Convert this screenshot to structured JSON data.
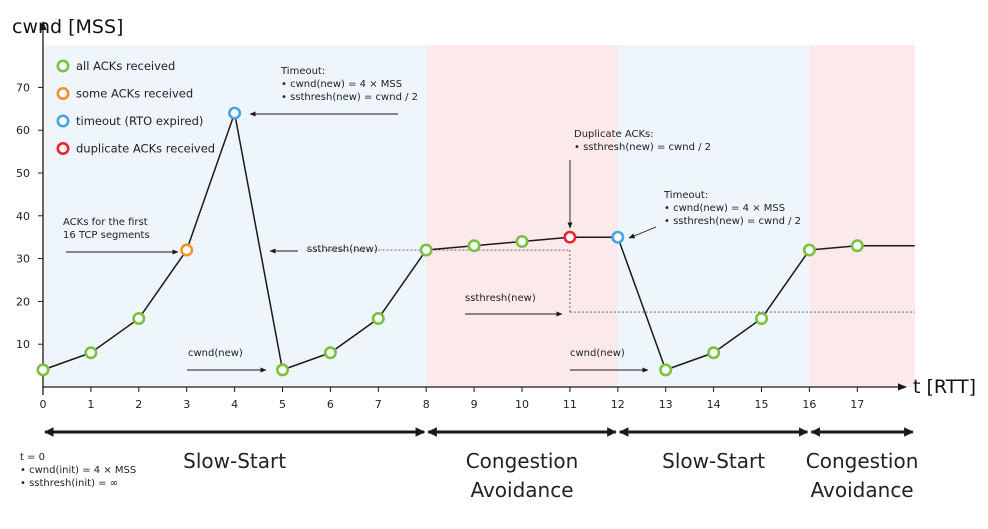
{
  "colors": {
    "green": "#7ac143",
    "orange": "#f0932b",
    "blue": "#4aa3df",
    "red": "#e8262f",
    "slow_start_band": "#eef5fb",
    "congestion_band": "#fbe9ec",
    "line": "#1a1a1a"
  },
  "chart_data": {
    "type": "line",
    "ylabel": "cwnd [MSS]",
    "xlabel": "t [RTT]",
    "xlim": [
      0,
      18.2
    ],
    "ylim": [
      0,
      80
    ],
    "x_ticks": [
      0,
      1,
      2,
      3,
      4,
      5,
      6,
      7,
      8,
      9,
      10,
      11,
      12,
      13,
      14,
      15,
      16,
      17
    ],
    "y_ticks": [
      10,
      20,
      30,
      40,
      50,
      60,
      70
    ],
    "grid": false,
    "legend_position": "top-left",
    "legend": [
      {
        "label": "all ACKs received",
        "color": "green"
      },
      {
        "label": "some ACKs received",
        "color": "orange"
      },
      {
        "label": "timeout (RTO expired)",
        "color": "blue"
      },
      {
        "label": "duplicate ACKs received",
        "color": "red"
      }
    ],
    "series": [
      {
        "x": [
          0,
          1,
          2,
          3,
          4,
          5,
          6,
          7,
          8,
          9,
          10,
          11,
          12,
          13,
          14,
          15,
          16,
          17,
          18.2
        ],
        "y": [
          4,
          8,
          16,
          32,
          64,
          4,
          8,
          16,
          32,
          33,
          34,
          35,
          35,
          4,
          8,
          16,
          32,
          33,
          33
        ],
        "marker_status": [
          "green",
          "green",
          "green",
          "orange",
          "blue",
          "green",
          "green",
          "green",
          "green",
          "green",
          "green",
          "red",
          "blue",
          "green",
          "green",
          "green",
          "green",
          "green",
          null
        ]
      }
    ],
    "regions": [
      {
        "label": "Slow-Start",
        "x_start": 0,
        "x_end": 8,
        "kind": "slow_start_band"
      },
      {
        "label": "Congestion\nAvoidance",
        "x_start": 8,
        "x_end": 12,
        "kind": "congestion_band"
      },
      {
        "label": "Slow-Start",
        "x_start": 12,
        "x_end": 16,
        "kind": "slow_start_band"
      },
      {
        "label": "Congestion\nAvoidance",
        "x_start": 16,
        "x_end": 18.2,
        "kind": "congestion_band"
      }
    ],
    "ssthresh_levels": [
      {
        "x_start": 5.5,
        "x_end": 11,
        "y": 32
      },
      {
        "x_start": 11,
        "x_end": 18.2,
        "y": 17.5
      }
    ],
    "annotations": [
      {
        "lines": [
          "Timeout:",
          "• cwnd(new) = 4 × MSS",
          "• ssthresh(new) = cwnd / 2"
        ]
      },
      {
        "lines": [
          "ACKs for the first",
          "16 TCP segments"
        ]
      },
      {
        "lines": [
          "ssthresh(new)"
        ]
      },
      {
        "lines": [
          "cwnd(new)"
        ]
      },
      {
        "lines": [
          "Duplicate ACKs:",
          "• ssthresh(new) = cwnd / 2"
        ]
      },
      {
        "lines": [
          "Timeout:",
          "• cwnd(new) = 4 × MSS",
          "• ssthresh(new) = cwnd / 2"
        ]
      },
      {
        "lines": [
          "ssthresh(new)"
        ]
      },
      {
        "lines": [
          "cwnd(new)"
        ]
      }
    ],
    "footnote": [
      "t = 0",
      "• cwnd(init) = 4 × MSS",
      "• ssthresh(init) = ∞"
    ]
  }
}
